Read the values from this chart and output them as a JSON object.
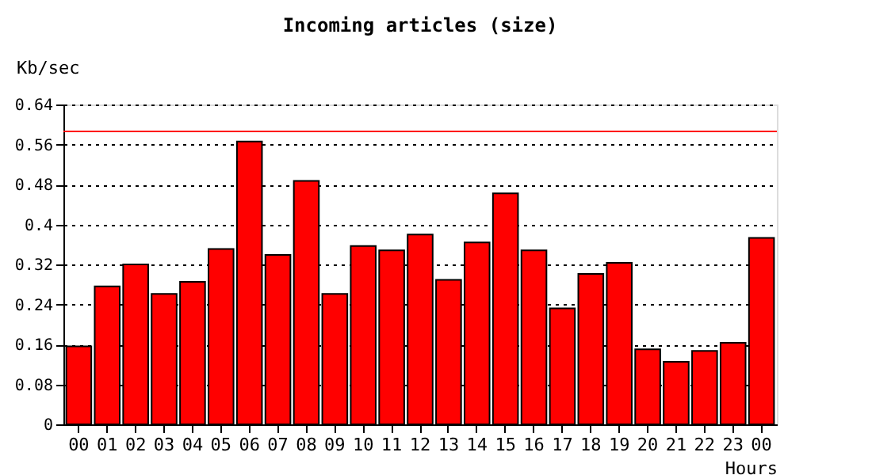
{
  "chart_data": {
    "type": "bar",
    "title": "Incoming articles (size)",
    "xlabel": "Hours",
    "ylabel": "Kb/sec",
    "categories": [
      "00",
      "01",
      "02",
      "03",
      "04",
      "05",
      "06",
      "07",
      "08",
      "09",
      "10",
      "11",
      "12",
      "13",
      "14",
      "15",
      "16",
      "17",
      "18",
      "19",
      "20",
      "21",
      "22",
      "23",
      "00"
    ],
    "series": [
      {
        "color": "#ff0000",
        "values": [
          0.156,
          0.276,
          0.32,
          0.261,
          0.285,
          0.351,
          0.566,
          0.339,
          0.487,
          0.261,
          0.357,
          0.348,
          0.38,
          0.289,
          0.364,
          0.462,
          0.348,
          0.232,
          0.301,
          0.323,
          0.15,
          0.125,
          0.147,
          0.163,
          0.373
        ]
      }
    ],
    "ylim": [
      0,
      0.64
    ],
    "yticks": [
      0,
      0.08,
      0.16,
      0.24,
      0.32,
      {
        "value": 0.4,
        "label": "0.4"
      },
      0.48,
      0.56,
      0.64
    ],
    "grid": "y",
    "line_style": "dotted",
    "ref_lines": [
      {
        "axis": "y",
        "value": 0.586,
        "color": "#ff0000"
      }
    ]
  }
}
